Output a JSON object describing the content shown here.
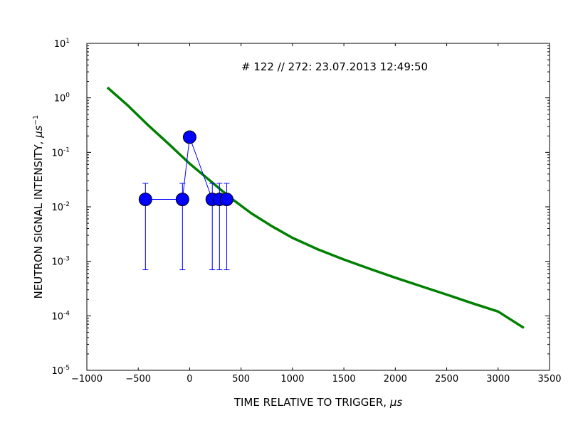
{
  "chart_data": {
    "type": "scatter",
    "annotation": "# 122 // 272: 23.07.2013 12:49:50",
    "xlabel": "TIME RELATIVE TO TRIGGER, ",
    "xlabel_unit": "μs",
    "ylabel": "NEUTRON SIGNAL INTENSITY, ",
    "ylabel_unit": "μs",
    "ylabel_unit_exp": "−1",
    "xlim": [
      -1000,
      3500
    ],
    "ylim": [
      1e-05,
      10
    ],
    "yscale": "log",
    "grid": false,
    "xticks": [
      {
        "value": -1000,
        "label": "−1000"
      },
      {
        "value": -500,
        "label": "−500"
      },
      {
        "value": 0,
        "label": "0"
      },
      {
        "value": 500,
        "label": "500"
      },
      {
        "value": 1000,
        "label": "1000"
      },
      {
        "value": 1500,
        "label": "1500"
      },
      {
        "value": 2000,
        "label": "2000"
      },
      {
        "value": 2500,
        "label": "2500"
      },
      {
        "value": 3000,
        "label": "3000"
      },
      {
        "value": 3500,
        "label": "3500"
      }
    ],
    "yticks": [
      {
        "value": 1e-05,
        "base": "10",
        "exp": "-5"
      },
      {
        "value": 0.0001,
        "base": "10",
        "exp": "-4"
      },
      {
        "value": 0.001,
        "base": "10",
        "exp": "-3"
      },
      {
        "value": 0.01,
        "base": "10",
        "exp": "-2"
      },
      {
        "value": 0.1,
        "base": "10",
        "exp": "-1"
      },
      {
        "value": 1,
        "base": "10",
        "exp": "0"
      },
      {
        "value": 10,
        "base": "10",
        "exp": "1"
      }
    ],
    "series": [
      {
        "kind": "measured",
        "color": "#0000ff",
        "points": [
          {
            "x": -430,
            "y": 0.0137,
            "err_low": 0.0007,
            "err_high": 0.027
          },
          {
            "x": -70,
            "y": 0.0137,
            "err_low": 0.0007,
            "err_high": 0.027
          },
          {
            "x": 0,
            "y": 0.19
          },
          {
            "x": 220,
            "y": 0.0137,
            "err_low": 0.0007,
            "err_high": 0.027
          },
          {
            "x": 290,
            "y": 0.0137,
            "err_low": 0.0007,
            "err_high": 0.027
          },
          {
            "x": 360,
            "y": 0.0137,
            "err_low": 0.0007,
            "err_high": 0.027
          }
        ]
      },
      {
        "kind": "fit",
        "color": "#008000",
        "x": [
          -800,
          -600,
          -400,
          -200,
          0,
          200,
          400,
          600,
          800,
          1000,
          1250,
          1500,
          1750,
          2000,
          2250,
          2500,
          2750,
          3000,
          3250
        ],
        "y": [
          1.55,
          0.72,
          0.31,
          0.14,
          0.062,
          0.03,
          0.0145,
          0.0076,
          0.0044,
          0.0027,
          0.00165,
          0.00108,
          0.00073,
          0.0005,
          0.00035,
          0.000245,
          0.00017,
          0.00012,
          6e-05
        ]
      }
    ]
  }
}
